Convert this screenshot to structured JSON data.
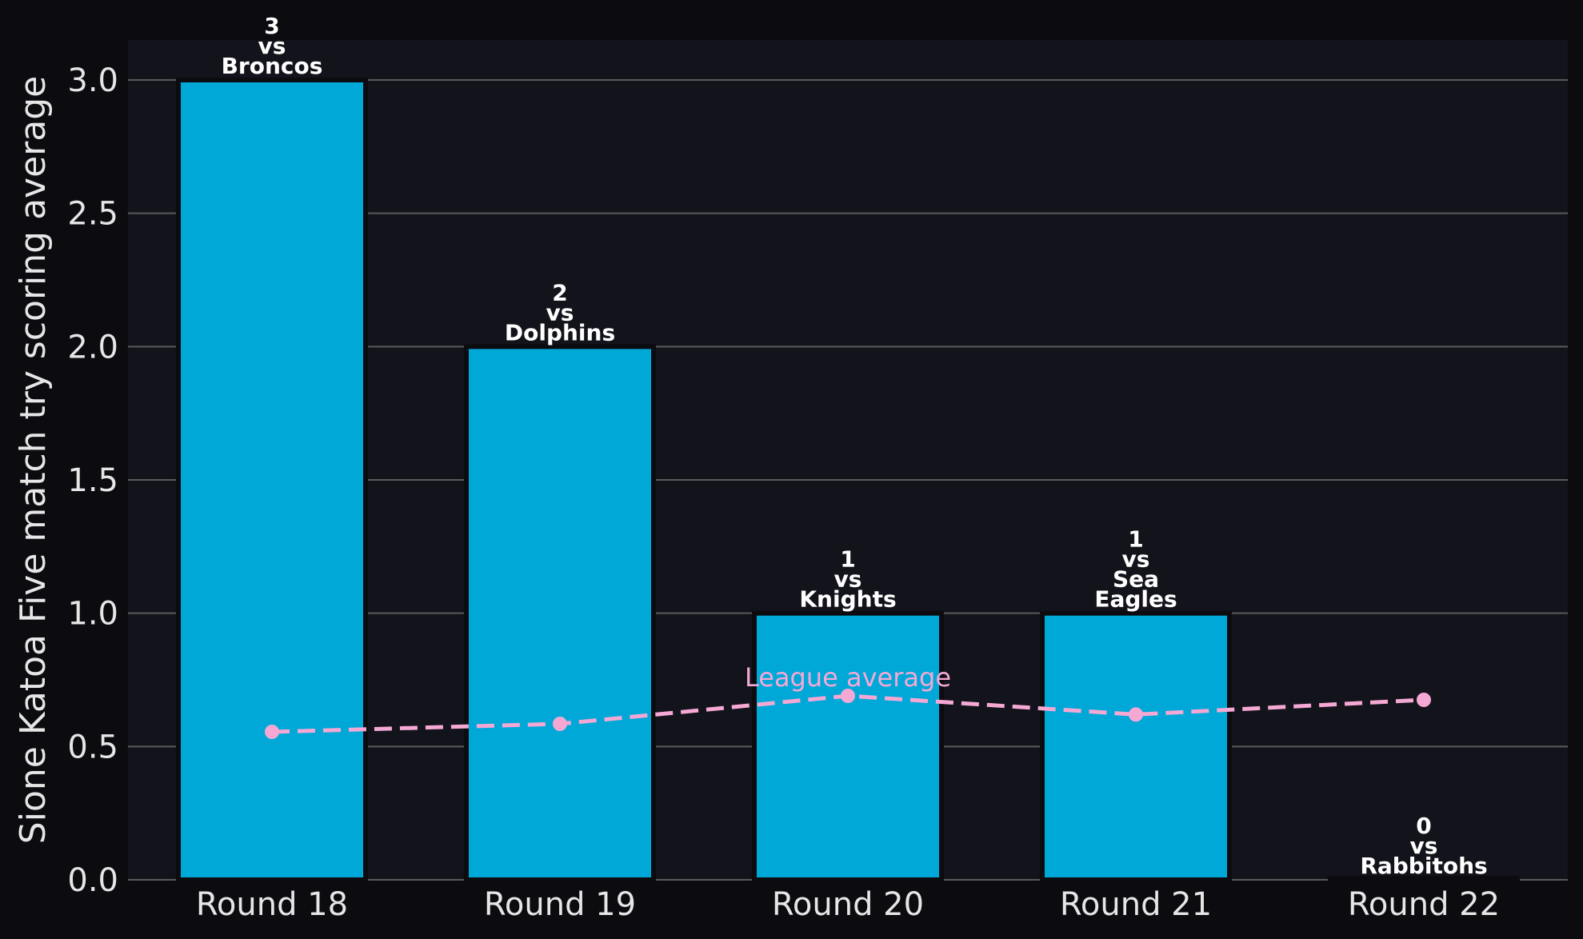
{
  "chart_data": {
    "type": "bar",
    "categories": [
      "Round 18",
      "Round 19",
      "Round 20",
      "Round 21",
      "Round 22"
    ],
    "series": [
      {
        "values": [
          3,
          2,
          1,
          1,
          0
        ],
        "color": "#00a8d8"
      },
      {
        "name": "League average",
        "type": "line",
        "values": [
          0.555,
          0.585,
          0.69,
          0.62,
          0.675
        ],
        "color": "#f5a8d4",
        "line_style": "dashed",
        "marker": "circle"
      }
    ],
    "bar_labels": [
      [
        "3",
        "vs",
        "Broncos"
      ],
      [
        "2",
        "vs",
        "Dolphins"
      ],
      [
        "1",
        "vs",
        "Knights"
      ],
      [
        "1",
        "vs",
        "Sea",
        "Eagles"
      ],
      [
        "0",
        "vs",
        "Rabbitohs"
      ]
    ],
    "line_annotation": "League average",
    "xlabel": "",
    "ylabel": "Sione Katoa Five match try scoring average",
    "ylim": [
      0,
      3.15
    ],
    "yticks": [
      "0.0",
      "0.5",
      "1.0",
      "1.5",
      "2.0",
      "2.5",
      "3.0"
    ],
    "grid": "horizontal",
    "colors": {
      "page_background": "#0b0b10",
      "plot_background": "#13141b",
      "grid": "#5a5a5a",
      "text": "#e6e6e6",
      "bar_edge": "#0b0b10"
    }
  }
}
